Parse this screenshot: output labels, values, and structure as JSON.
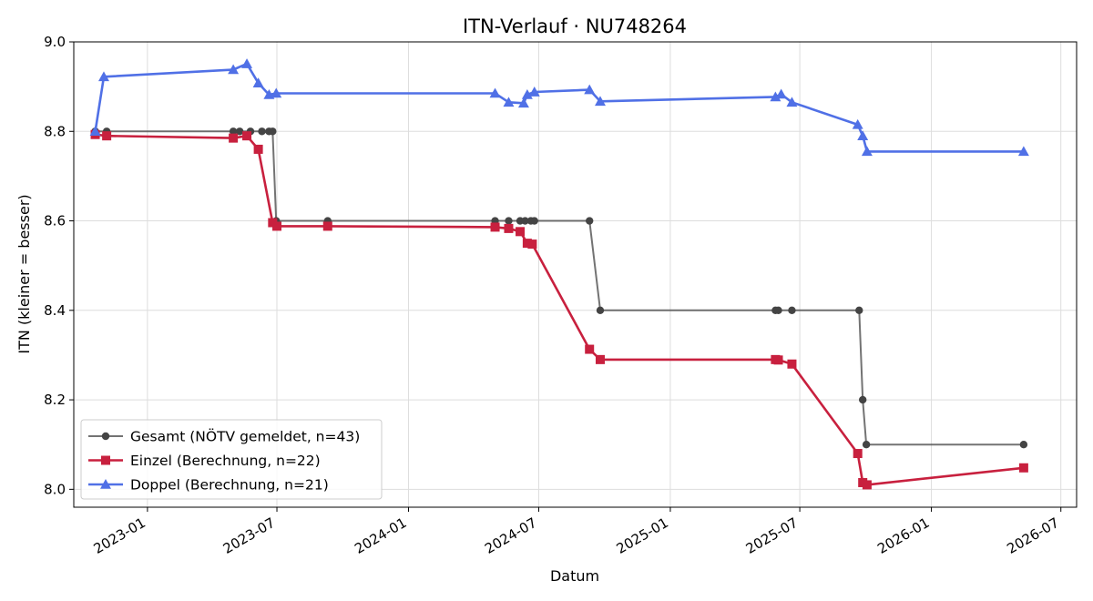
{
  "chart_data": {
    "type": "line",
    "title": "ITN-Verlauf · NU748264",
    "xlabel": "Datum",
    "ylabel": "ITN  (kleiner = besser)",
    "ylim": [
      7.96,
      9.0
    ],
    "xlim": [
      "2022-09-20",
      "2026-07-23"
    ],
    "x_ticks": [
      "2023-01",
      "2023-07",
      "2024-01",
      "2024-07",
      "2025-01",
      "2025-07",
      "2026-01",
      "2026-07"
    ],
    "y_ticks": [
      "8.0",
      "8.2",
      "8.4",
      "8.6",
      "8.8",
      "9.0"
    ],
    "grid": true,
    "legend_position": "lower-left",
    "series": [
      {
        "name": "Gesamt (NÖTV gemeldet, n=43)",
        "color": "#444444",
        "marker": "circle",
        "points": [
          [
            "2022-10-20",
            8.8
          ],
          [
            "2022-11-05",
            8.8
          ],
          [
            "2023-05-01",
            8.8
          ],
          [
            "2023-05-10",
            8.8
          ],
          [
            "2023-05-25",
            8.8
          ],
          [
            "2023-06-10",
            8.8
          ],
          [
            "2023-06-20",
            8.8
          ],
          [
            "2023-06-25",
            8.8
          ],
          [
            "2023-06-30",
            8.6
          ],
          [
            "2023-09-10",
            8.6
          ],
          [
            "2024-05-01",
            8.6
          ],
          [
            "2024-05-20",
            8.6
          ],
          [
            "2024-06-05",
            8.6
          ],
          [
            "2024-06-12",
            8.6
          ],
          [
            "2024-06-20",
            8.6
          ],
          [
            "2024-06-25",
            8.6
          ],
          [
            "2024-09-10",
            8.6
          ],
          [
            "2024-09-25",
            8.4
          ],
          [
            "2025-05-28",
            8.4
          ],
          [
            "2025-06-01",
            8.4
          ],
          [
            "2025-06-20",
            8.4
          ],
          [
            "2025-09-22",
            8.4
          ],
          [
            "2025-09-27",
            8.2
          ],
          [
            "2025-10-02",
            8.1
          ],
          [
            "2026-05-10",
            8.1
          ]
        ]
      },
      {
        "name": "Einzel (Berechnung, n=22)",
        "color": "#c8203e",
        "marker": "square",
        "points": [
          [
            "2022-10-20",
            8.793
          ],
          [
            "2022-11-05",
            8.79
          ],
          [
            "2023-05-01",
            8.785
          ],
          [
            "2023-05-20",
            8.79
          ],
          [
            "2023-06-05",
            8.76
          ],
          [
            "2023-06-25",
            8.596
          ],
          [
            "2023-07-01",
            8.588
          ],
          [
            "2023-09-10",
            8.588
          ],
          [
            "2024-05-01",
            8.586
          ],
          [
            "2024-05-20",
            8.583
          ],
          [
            "2024-06-05",
            8.576
          ],
          [
            "2024-06-15",
            8.55
          ],
          [
            "2024-06-22",
            8.548
          ],
          [
            "2024-09-10",
            8.313
          ],
          [
            "2024-09-25",
            8.29
          ],
          [
            "2025-05-28",
            8.29
          ],
          [
            "2025-06-01",
            8.289
          ],
          [
            "2025-06-20",
            8.28
          ],
          [
            "2025-09-20",
            8.08
          ],
          [
            "2025-09-27",
            8.015
          ],
          [
            "2025-10-03",
            8.01
          ],
          [
            "2026-05-10",
            8.048
          ]
        ]
      },
      {
        "name": "Doppel (Berechnung, n=21)",
        "color": "#5070e6",
        "marker": "triangle",
        "points": [
          [
            "2022-10-20",
            8.8
          ],
          [
            "2022-11-01",
            8.922
          ],
          [
            "2023-05-01",
            8.938
          ],
          [
            "2023-05-20",
            8.951
          ],
          [
            "2023-06-05",
            8.908
          ],
          [
            "2023-06-20",
            8.882
          ],
          [
            "2023-06-30",
            8.885
          ],
          [
            "2024-05-01",
            8.885
          ],
          [
            "2024-05-20",
            8.865
          ],
          [
            "2024-06-10",
            8.863
          ],
          [
            "2024-06-15",
            8.882
          ],
          [
            "2024-06-25",
            8.888
          ],
          [
            "2024-09-10",
            8.893
          ],
          [
            "2024-09-25",
            8.867
          ],
          [
            "2025-05-28",
            8.877
          ],
          [
            "2025-06-05",
            8.883
          ],
          [
            "2025-06-20",
            8.865
          ],
          [
            "2025-09-20",
            8.815
          ],
          [
            "2025-09-27",
            8.79
          ],
          [
            "2025-10-03",
            8.755
          ],
          [
            "2026-05-10",
            8.755
          ]
        ]
      }
    ]
  }
}
